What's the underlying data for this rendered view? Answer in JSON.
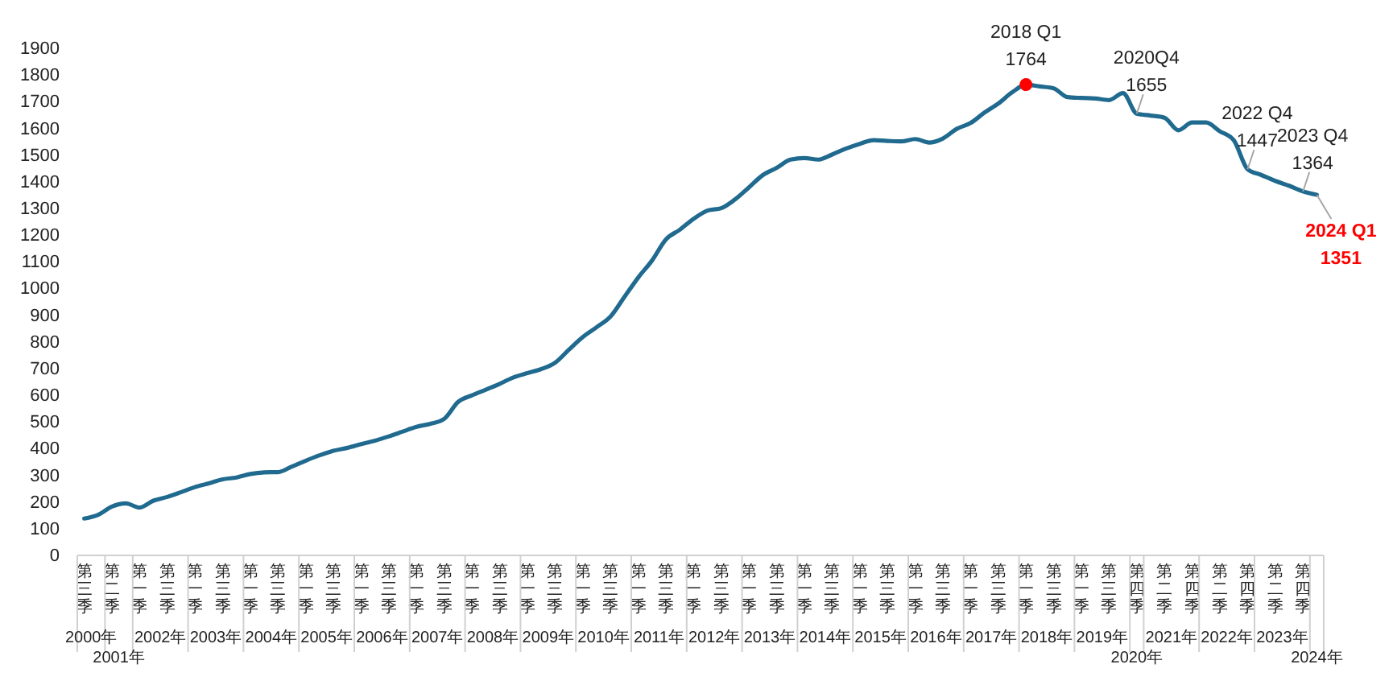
{
  "chart_data": {
    "type": "line",
    "categories": [
      "第三季",
      null,
      "第二季",
      null,
      "第一季",
      null,
      "第三季",
      null,
      "第一季",
      null,
      "第三季",
      null,
      "第一季",
      null,
      "第三季",
      null,
      "第一季",
      null,
      "第三季",
      null,
      "第一季",
      null,
      "第三季",
      null,
      "第一季",
      null,
      "第三季",
      null,
      "第一季",
      null,
      "第三季",
      null,
      "第一季",
      null,
      "第三季",
      null,
      "第一季",
      null,
      "第三季",
      null,
      "第一季",
      null,
      "第三季",
      null,
      "第一季",
      null,
      "第三季",
      null,
      "第一季",
      null,
      "第三季",
      null,
      "第一季",
      null,
      "第三季",
      null,
      "第一季",
      null,
      "第三季",
      null,
      "第一季",
      null,
      "第三季",
      null,
      "第一季",
      null,
      "第三季",
      null,
      "第一季",
      null,
      "第三季",
      null,
      "第一季",
      null,
      "第三季",
      null,
      "第四季",
      null,
      "第二季",
      null,
      "第四季",
      null,
      "第二季",
      null,
      "第四季",
      null,
      "第二季",
      null,
      "第四季",
      null
    ],
    "series": [
      {
        "color": "#1f6a8e",
        "values": [
          138,
          152,
          183,
          195,
          179,
          205,
          219,
          237,
          256,
          270,
          285,
          292,
          305,
          311,
          312,
          333,
          355,
          375,
          392,
          403,
          417,
          430,
          446,
          464,
          482,
          493,
          512,
          575,
          600,
          621,
          643,
          667,
          683,
          698,
          722,
          771,
          818,
          855,
          895,
          968,
          1041,
          1105,
          1184,
          1220,
          1261,
          1292,
          1301,
          1334,
          1379,
          1425,
          1452,
          1483,
          1489,
          1483,
          1502,
          1524,
          1542,
          1556,
          1553,
          1551,
          1560,
          1547,
          1562,
          1598,
          1620,
          1659,
          1693,
          1735,
          1764,
          1757,
          1750,
          1717,
          1714,
          1712,
          1706,
          1732,
          1655,
          1648,
          1640,
          1593,
          1622,
          1622,
          1589,
          1556,
          1447,
          1425,
          1403,
          1385,
          1364,
          1351
        ],
        "value_labels": [
          null,
          null,
          null,
          null,
          null,
          null,
          null,
          null,
          null,
          null,
          null,
          null,
          null,
          null,
          null,
          null,
          null,
          null,
          null,
          null,
          null,
          null,
          null,
          null,
          null,
          null,
          null,
          null,
          null,
          null,
          null,
          null,
          null,
          null,
          null,
          null,
          null,
          null,
          null,
          null,
          null,
          null,
          null,
          null,
          null,
          null,
          null,
          null,
          null,
          null,
          null,
          null,
          null,
          null,
          null,
          null,
          null,
          null,
          null,
          null,
          null,
          null,
          null,
          null,
          null,
          null,
          null,
          null,
          "1764",
          null,
          null,
          null,
          null,
          null,
          null,
          null,
          "1655",
          null,
          null,
          null,
          null,
          null,
          null,
          null,
          "1447",
          null,
          null,
          null,
          "1364",
          "1351"
        ]
      },
      {
        "type": "scatter",
        "color": "#ff0000",
        "values": [
          null,
          null,
          null,
          null,
          null,
          null,
          null,
          null,
          null,
          null,
          null,
          null,
          null,
          null,
          null,
          null,
          null,
          null,
          null,
          null,
          null,
          null,
          null,
          null,
          null,
          null,
          null,
          null,
          null,
          null,
          null,
          null,
          null,
          null,
          null,
          null,
          null,
          null,
          null,
          null,
          null,
          null,
          null,
          null,
          null,
          null,
          null,
          null,
          null,
          null,
          null,
          null,
          null,
          null,
          null,
          null,
          null,
          null,
          null,
          null,
          null,
          null,
          null,
          null,
          null,
          null,
          null,
          null,
          1764,
          null,
          null,
          null,
          null,
          null,
          null,
          null,
          null,
          null,
          null,
          null,
          null,
          null,
          null,
          null,
          null,
          null,
          null,
          null,
          null,
          null
        ]
      }
    ],
    "ylim": [
      0,
      1900
    ],
    "yticks": [
      0,
      100,
      200,
      300,
      400,
      500,
      600,
      700,
      800,
      900,
      1000,
      1100,
      1200,
      1300,
      1400,
      1500,
      1600,
      1700,
      1800,
      1900
    ],
    "annotations": [
      "2018 Q1",
      "2020Q4",
      "2022 Q4",
      "2023 Q4",
      "2024 Q1",
      "2000年",
      "2001年",
      "2002年",
      "2003年",
      "2004年",
      "2005年",
      "2006年",
      "2007年",
      "2008年",
      "2009年",
      "2010年",
      "2011年",
      "2012年",
      "2013年",
      "2014年",
      "2015年",
      "2016年",
      "2017年",
      "2018年",
      "2019年",
      "2020年",
      "2021年",
      "2022年",
      "2023年",
      "2024年"
    ]
  }
}
